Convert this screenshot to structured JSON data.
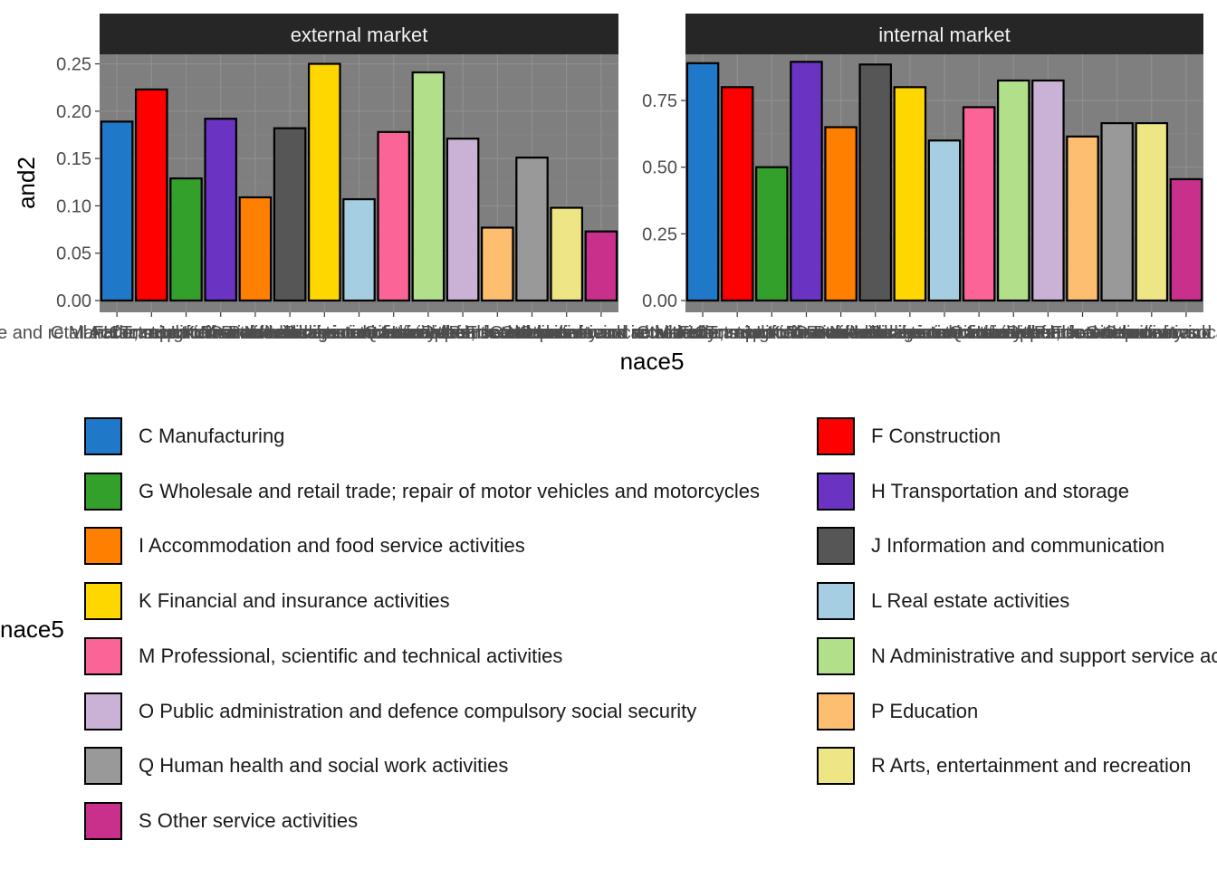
{
  "chart_data": {
    "type": "bar",
    "ylabel": "and2",
    "xlabel": "nace5",
    "legend_title": "nace5",
    "grid": true,
    "legend_position": "bottom",
    "categories": [
      "C Manufacturing",
      "F Construction",
      "G Wholesale and retail trade; repair of motor vehicles and motorcycles",
      "H Transportation and storage",
      "I Accommodation and food service activities",
      "J Information and communication",
      "K Financial and insurance activities",
      "L Real estate activities",
      "M Professional, scientific and technical activities",
      "N Administrative and support service activities",
      "O Public administration and defence compulsory social security",
      "P Education",
      "Q Human health and social work activities",
      "R Arts, entertainment and recreation",
      "S Other service activities"
    ],
    "colors": [
      "#1F78C8",
      "#FF0000",
      "#33A02C",
      "#6A33C2",
      "#FF7F00",
      "#565656",
      "#FFD700",
      "#A6CEE3",
      "#FB6496",
      "#B2DF8A",
      "#CAB2D6",
      "#FDBF6F",
      "#999999",
      "#EEE685",
      "#C8308C"
    ],
    "panels": [
      {
        "strip": "external market",
        "ylim": [
          0,
          0.262
        ],
        "yticks": [
          "0.00",
          "0.05",
          "0.10",
          "0.15",
          "0.20",
          "0.25"
        ],
        "values": [
          0.189,
          0.223,
          0.129,
          0.192,
          0.109,
          0.182,
          0.25,
          0.107,
          0.178,
          0.241,
          0.171,
          0.077,
          0.151,
          0.098,
          0.073
        ]
      },
      {
        "strip": "internal market",
        "ylim": [
          0,
          0.93
        ],
        "yticks": [
          "0.00",
          "0.25",
          "0.50",
          "0.75"
        ],
        "values": [
          0.89,
          0.8,
          0.5,
          0.895,
          0.65,
          0.885,
          0.8,
          0.6,
          0.725,
          0.825,
          0.825,
          0.615,
          0.665,
          0.665,
          0.455
        ]
      }
    ]
  }
}
